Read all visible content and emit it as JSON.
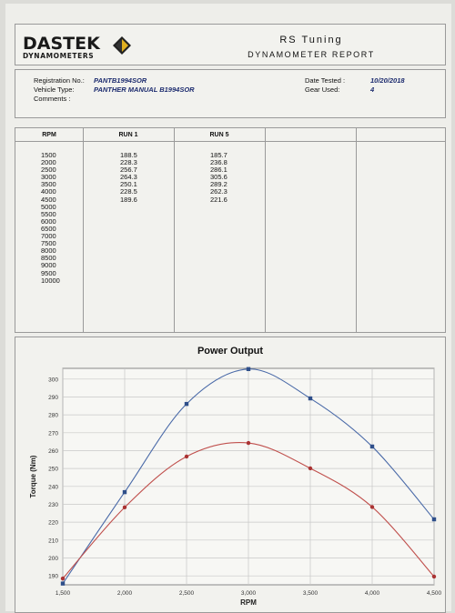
{
  "header": {
    "logo_main": "DASTEK",
    "logo_sub": "DYNAMOMETERS",
    "company": "RS Tuning",
    "report_title": "DYNAMOMETER REPORT"
  },
  "info": {
    "registration_label": "Registration No.:",
    "registration_value": "PANTB1994SOR",
    "vehicle_label": "Vehicle Type:",
    "vehicle_value": "PANTHER MANUAL B1994SOR",
    "comments_label": "Comments :",
    "date_label": "Date Tested :",
    "date_value": "10/20/2018",
    "gear_label": "Gear Used:",
    "gear_value": "4"
  },
  "table": {
    "headers": [
      "RPM",
      "RUN 1",
      "RUN 5"
    ],
    "rpm": [
      "1500",
      "2000",
      "2500",
      "3000",
      "3500",
      "4000",
      "4500",
      "5000",
      "5500",
      "6000",
      "6500",
      "7000",
      "7500",
      "8000",
      "8500",
      "9000",
      "9500",
      "10000"
    ],
    "run1": [
      "188.5",
      "228.3",
      "256.7",
      "264.3",
      "250.1",
      "228.5",
      "189.6"
    ],
    "run5": [
      "185.7",
      "236.8",
      "286.1",
      "305.6",
      "289.2",
      "262.3",
      "221.6"
    ]
  },
  "chart_data": {
    "type": "line",
    "title": "Power Output",
    "xlabel": "RPM",
    "ylabel": "Torque (Nm)",
    "x": [
      1500,
      2000,
      2500,
      3000,
      3500,
      4000,
      4500
    ],
    "x_tick_labels": [
      "1,500",
      "2,000",
      "2,500",
      "3,000",
      "3,500",
      "4,000",
      "4,500"
    ],
    "y_ticks": [
      190,
      200,
      210,
      220,
      230,
      240,
      250,
      260,
      270,
      280,
      290,
      300
    ],
    "xlim": [
      1500,
      4500
    ],
    "ylim": [
      185,
      306
    ],
    "grid": true,
    "series": [
      {
        "values": [
          185.7,
          236.8,
          286.1,
          305.6,
          289.2,
          262.3,
          221.6
        ],
        "color": "#4a6aa8",
        "marker": "square"
      },
      {
        "values": [
          188.5,
          228.3,
          256.7,
          264.3,
          250.1,
          228.5,
          189.6
        ],
        "color": "#c0504d",
        "marker": "circle"
      }
    ]
  }
}
